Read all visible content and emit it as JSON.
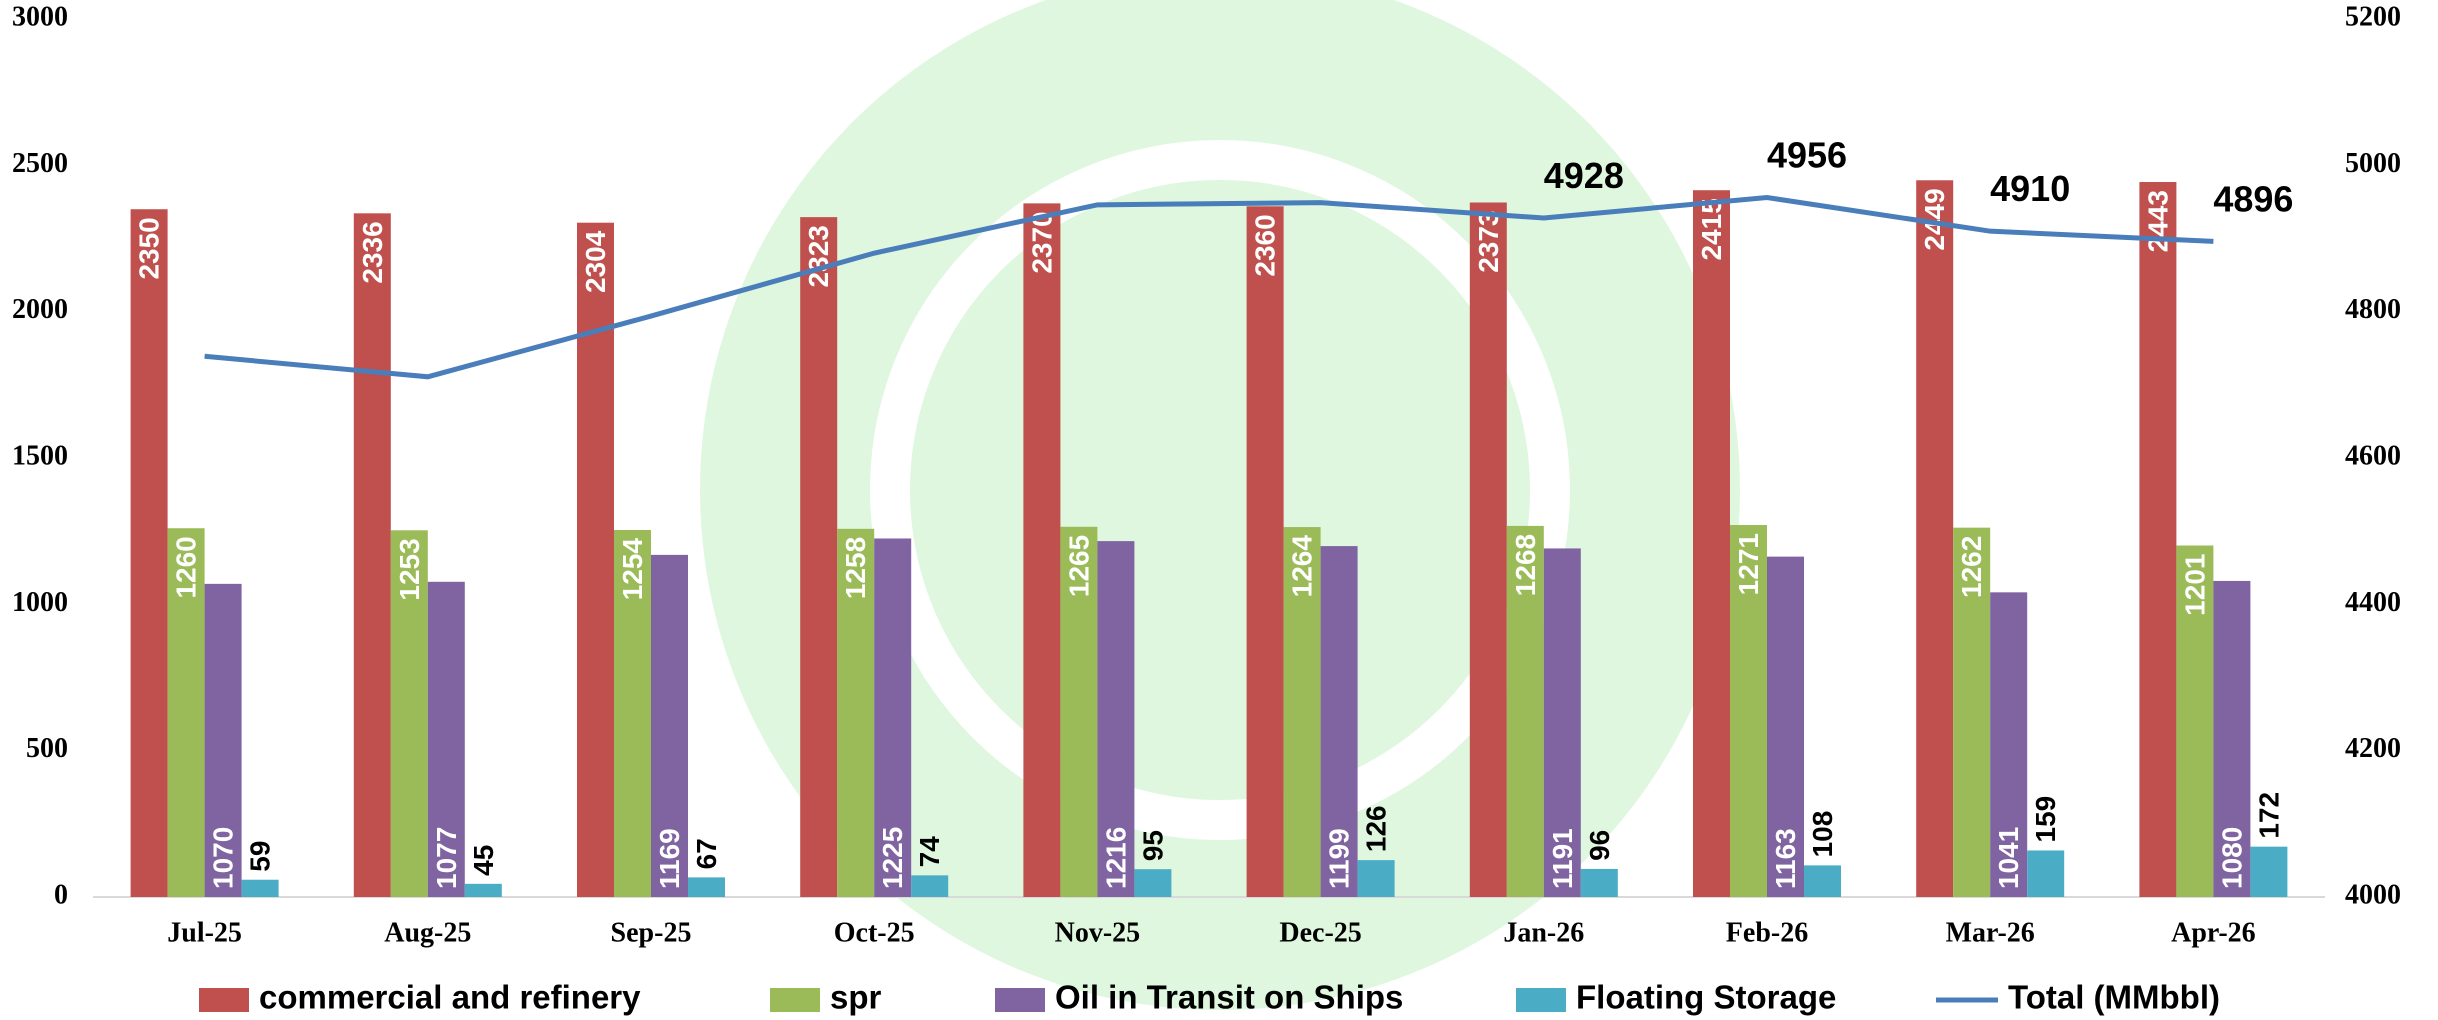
{
  "chart_data": {
    "type": "bar",
    "categories": [
      "Jul-25",
      "Aug-25",
      "Sep-25",
      "Oct-25",
      "Nov-25",
      "Dec-25",
      "Jan-26",
      "Feb-26",
      "Mar-26",
      "Apr-26"
    ],
    "series": [
      {
        "name": "commercial and refinery",
        "color": "#c0504d",
        "values": [
          2350,
          2336,
          2304,
          2323,
          2370,
          2360,
          2373,
          2415,
          2449,
          2443
        ]
      },
      {
        "name": "spr",
        "color": "#9bbb59",
        "values": [
          1260,
          1253,
          1254,
          1258,
          1265,
          1264,
          1268,
          1271,
          1262,
          1201
        ]
      },
      {
        "name": "Oil in Transit on Ships",
        "color": "#8064a2",
        "values": [
          1070,
          1077,
          1169,
          1225,
          1216,
          1199,
          1191,
          1163,
          1041,
          1080
        ]
      },
      {
        "name": "Floating Storage",
        "color": "#4bacc6",
        "values": [
          59,
          45,
          67,
          74,
          95,
          126,
          96,
          108,
          159,
          172
        ]
      },
      {
        "name": "Total (MMbbl)",
        "color": "#4a7ebb",
        "type": "line",
        "axis": "y2",
        "values": [
          4739,
          4711,
          4794,
          4880,
          4946,
          4949,
          4928,
          4956,
          4910,
          4896
        ],
        "value_labels": [
          null,
          null,
          null,
          null,
          null,
          null,
          "4928",
          "4956",
          "4910",
          "4896"
        ]
      }
    ],
    "ylim": [
      0,
      3000
    ],
    "yticks": [
      0,
      500,
      1000,
      1500,
      2000,
      2500,
      3000
    ],
    "y2lim": [
      4000,
      5200
    ],
    "y2ticks": [
      4000,
      4200,
      4400,
      4600,
      4800,
      5000,
      5200
    ],
    "legend": "bottom",
    "grid": false
  }
}
